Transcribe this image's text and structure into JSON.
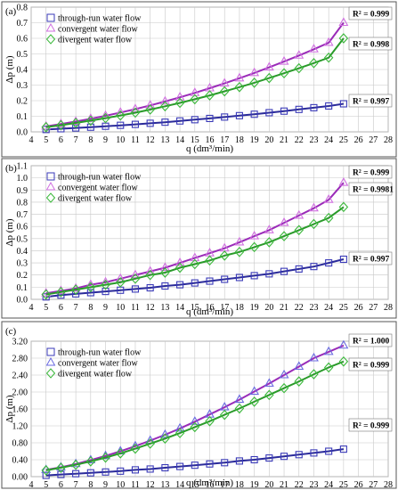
{
  "chart_data": [
    {
      "type": "scatter",
      "panel_label": "(a)",
      "xlabel": "q (dm³/min)",
      "ylabel": "Δp (m)",
      "xlim": [
        4,
        28
      ],
      "ylim": [
        0,
        0.8
      ],
      "x_ticks": [
        "4",
        "5",
        "6",
        "7",
        "8",
        "9",
        "10",
        "11",
        "12",
        "13",
        "14",
        "15",
        "16",
        "17",
        "18",
        "19",
        "20",
        "21",
        "22",
        "23",
        "24",
        "25",
        "26",
        "27",
        "28"
      ],
      "y_ticks": [
        "0.0",
        "0.1",
        "0.2",
        "0.3",
        "0.4",
        "0.5",
        "0.6",
        "0.7",
        "0.8"
      ],
      "grid": true,
      "legend_position": "top-left",
      "series": [
        {
          "name": "through-run water flow",
          "marker": "square",
          "color": "#3a3ab8",
          "fit_color": "#2b2b9a",
          "r2": "R² = 0.997",
          "x": [
            5,
            6,
            7,
            8,
            9,
            10,
            11,
            12,
            13,
            14,
            15,
            16,
            17,
            18,
            19,
            20,
            21,
            22,
            23,
            24,
            25
          ],
          "y": [
            0.015,
            0.02,
            0.025,
            0.03,
            0.036,
            0.042,
            0.048,
            0.055,
            0.062,
            0.07,
            0.078,
            0.086,
            0.095,
            0.104,
            0.113,
            0.123,
            0.133,
            0.144,
            0.155,
            0.166,
            0.18
          ]
        },
        {
          "name": "convergent water flow",
          "marker": "triangle",
          "color": "#d070e0",
          "fit_color": "#9a2bb8",
          "r2": "R² = 0.999",
          "x": [
            5,
            6,
            7,
            8,
            9,
            10,
            11,
            12,
            13,
            14,
            15,
            16,
            17,
            18,
            19,
            20,
            21,
            22,
            23,
            24,
            25
          ],
          "y": [
            0.035,
            0.05,
            0.066,
            0.084,
            0.103,
            0.124,
            0.146,
            0.17,
            0.195,
            0.222,
            0.25,
            0.28,
            0.311,
            0.344,
            0.378,
            0.414,
            0.451,
            0.49,
            0.53,
            0.572,
            0.7
          ]
        },
        {
          "name": "divergent water flow",
          "marker": "diamond",
          "color": "#3ab83a",
          "fit_color": "#2a9a2a",
          "r2": "R² = 0.998",
          "x": [
            5,
            6,
            7,
            8,
            9,
            10,
            11,
            12,
            13,
            14,
            15,
            16,
            17,
            18,
            19,
            20,
            21,
            22,
            23,
            24,
            25
          ],
          "y": [
            0.03,
            0.043,
            0.057,
            0.072,
            0.088,
            0.105,
            0.123,
            0.143,
            0.164,
            0.186,
            0.209,
            0.234,
            0.26,
            0.287,
            0.315,
            0.345,
            0.376,
            0.408,
            0.441,
            0.476,
            0.6
          ]
        }
      ]
    },
    {
      "type": "scatter",
      "panel_label": "(b)",
      "xlabel": "q (dm³/min)",
      "ylabel": "Δp (m)",
      "xlim": [
        4,
        28
      ],
      "ylim": [
        0,
        1.1
      ],
      "x_ticks": [
        "4",
        "5",
        "6",
        "7",
        "8",
        "9",
        "10",
        "11",
        "12",
        "13",
        "14",
        "15",
        "16",
        "17",
        "18",
        "19",
        "20",
        "21",
        "22",
        "23",
        "24",
        "25",
        "26",
        "27",
        "28"
      ],
      "y_ticks": [
        "0.0",
        "0.1",
        "0.2",
        "0.3",
        "0.4",
        "0.5",
        "0.6",
        "0.7",
        "0.8",
        "0.9",
        "1.0",
        "1.1"
      ],
      "grid": true,
      "legend_position": "top-left",
      "series": [
        {
          "name": "through-run water flow",
          "marker": "square",
          "color": "#3a3ab8",
          "fit_color": "#2b2b9a",
          "r2": "R² = 0.997",
          "x": [
            5,
            6,
            7,
            8,
            9,
            10,
            11,
            12,
            13,
            14,
            15,
            16,
            17,
            18,
            19,
            20,
            21,
            22,
            23,
            24,
            25
          ],
          "y": [
            0.02,
            0.035,
            0.045,
            0.055,
            0.065,
            0.075,
            0.085,
            0.095,
            0.11,
            0.12,
            0.135,
            0.15,
            0.165,
            0.18,
            0.195,
            0.21,
            0.23,
            0.25,
            0.27,
            0.3,
            0.33
          ]
        },
        {
          "name": "convergent water flow",
          "marker": "triangle",
          "color": "#d070e0",
          "fit_color": "#9a2bb8",
          "r2": "R² = 0.999",
          "x": [
            5,
            6,
            7,
            8,
            9,
            10,
            11,
            12,
            13,
            14,
            15,
            16,
            17,
            18,
            19,
            20,
            21,
            22,
            23,
            24,
            25
          ],
          "y": [
            0.05,
            0.07,
            0.09,
            0.12,
            0.14,
            0.17,
            0.2,
            0.23,
            0.26,
            0.3,
            0.34,
            0.38,
            0.42,
            0.47,
            0.52,
            0.57,
            0.63,
            0.69,
            0.75,
            0.82,
            0.96
          ]
        },
        {
          "name": "divergent water flow",
          "marker": "diamond",
          "color": "#3ab83a",
          "fit_color": "#2a9a2a",
          "r2": "R² = 0.9981",
          "x": [
            5,
            6,
            7,
            8,
            9,
            10,
            11,
            12,
            13,
            14,
            15,
            16,
            17,
            18,
            19,
            20,
            21,
            22,
            23,
            24,
            25
          ],
          "y": [
            0.04,
            0.06,
            0.08,
            0.1,
            0.12,
            0.14,
            0.17,
            0.2,
            0.22,
            0.26,
            0.29,
            0.32,
            0.36,
            0.39,
            0.43,
            0.47,
            0.52,
            0.57,
            0.62,
            0.67,
            0.76
          ]
        }
      ]
    },
    {
      "type": "scatter",
      "panel_label": "(c)",
      "xlabel": "q (dm³/min)",
      "ylabel": "Δp (m)",
      "xlim": [
        4,
        28
      ],
      "ylim": [
        0,
        3.2
      ],
      "x_ticks": [
        "4",
        "5",
        "6",
        "7",
        "8",
        "9",
        "10",
        "11",
        "12",
        "13",
        "14",
        "15",
        "16",
        "17",
        "18",
        "19",
        "20",
        "21",
        "22",
        "23",
        "24",
        "25",
        "26",
        "27",
        "28"
      ],
      "y_ticks": [
        "0.00",
        "0.40",
        "0.80",
        "1.20",
        "1.60",
        "2.00",
        "2.40",
        "2.80",
        "3.20"
      ],
      "grid": true,
      "legend_position": "top-left",
      "series": [
        {
          "name": "through-run water flow",
          "marker": "square",
          "color": "#3a3ab8",
          "fit_color": "#2b2b9a",
          "r2": "R² = 0.999",
          "x": [
            5,
            6,
            7,
            8,
            9,
            10,
            11,
            12,
            13,
            14,
            15,
            16,
            17,
            18,
            19,
            20,
            21,
            22,
            23,
            24,
            25
          ],
          "y": [
            0.03,
            0.05,
            0.07,
            0.09,
            0.11,
            0.13,
            0.16,
            0.18,
            0.21,
            0.24,
            0.27,
            0.3,
            0.33,
            0.37,
            0.4,
            0.44,
            0.48,
            0.52,
            0.56,
            0.6,
            0.65
          ]
        },
        {
          "name": "convergent water flow",
          "marker": "triangle",
          "color": "#6a6ae0",
          "fit_color": "#9a2bb8",
          "r2": "R² = 1.000",
          "x": [
            5,
            6,
            7,
            8,
            9,
            10,
            11,
            12,
            13,
            14,
            15,
            16,
            17,
            18,
            19,
            20,
            21,
            22,
            23,
            24,
            25
          ],
          "y": [
            0.16,
            0.22,
            0.3,
            0.39,
            0.49,
            0.6,
            0.72,
            0.85,
            0.99,
            1.14,
            1.3,
            1.47,
            1.64,
            1.82,
            2.01,
            2.2,
            2.4,
            2.6,
            2.8,
            2.95,
            3.1
          ]
        },
        {
          "name": "divergent water flow",
          "marker": "diamond",
          "color": "#3ab83a",
          "fit_color": "#2a9a2a",
          "r2": "R² = 0.999",
          "x": [
            5,
            6,
            7,
            8,
            9,
            10,
            11,
            12,
            13,
            14,
            15,
            16,
            17,
            18,
            19,
            20,
            21,
            22,
            23,
            24,
            25
          ],
          "y": [
            0.15,
            0.21,
            0.28,
            0.36,
            0.45,
            0.55,
            0.66,
            0.78,
            0.9,
            1.03,
            1.17,
            1.31,
            1.46,
            1.61,
            1.77,
            1.93,
            2.09,
            2.25,
            2.42,
            2.58,
            2.72
          ]
        }
      ]
    }
  ]
}
